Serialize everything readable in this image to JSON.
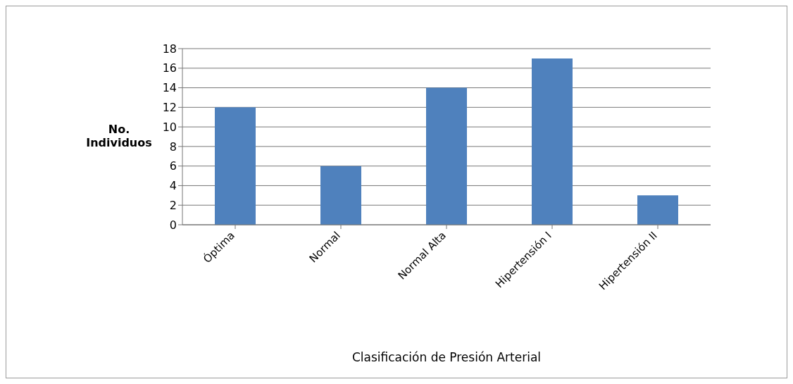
{
  "chart_data": {
    "type": "bar",
    "xlabel": "Clasificación de Presión Arterial",
    "ylabel": "No. Individuos",
    "categories": [
      "Óptima",
      "Normal",
      "Normal Alta",
      "Hipertensión I",
      "Hipertensión II"
    ],
    "values": [
      12,
      6,
      14,
      17,
      3
    ],
    "color": "#4f81bd",
    "ylim": [
      0,
      18
    ],
    "yticks": [
      0,
      2,
      4,
      6,
      8,
      10,
      12,
      14,
      16,
      18
    ],
    "grid": "y"
  }
}
